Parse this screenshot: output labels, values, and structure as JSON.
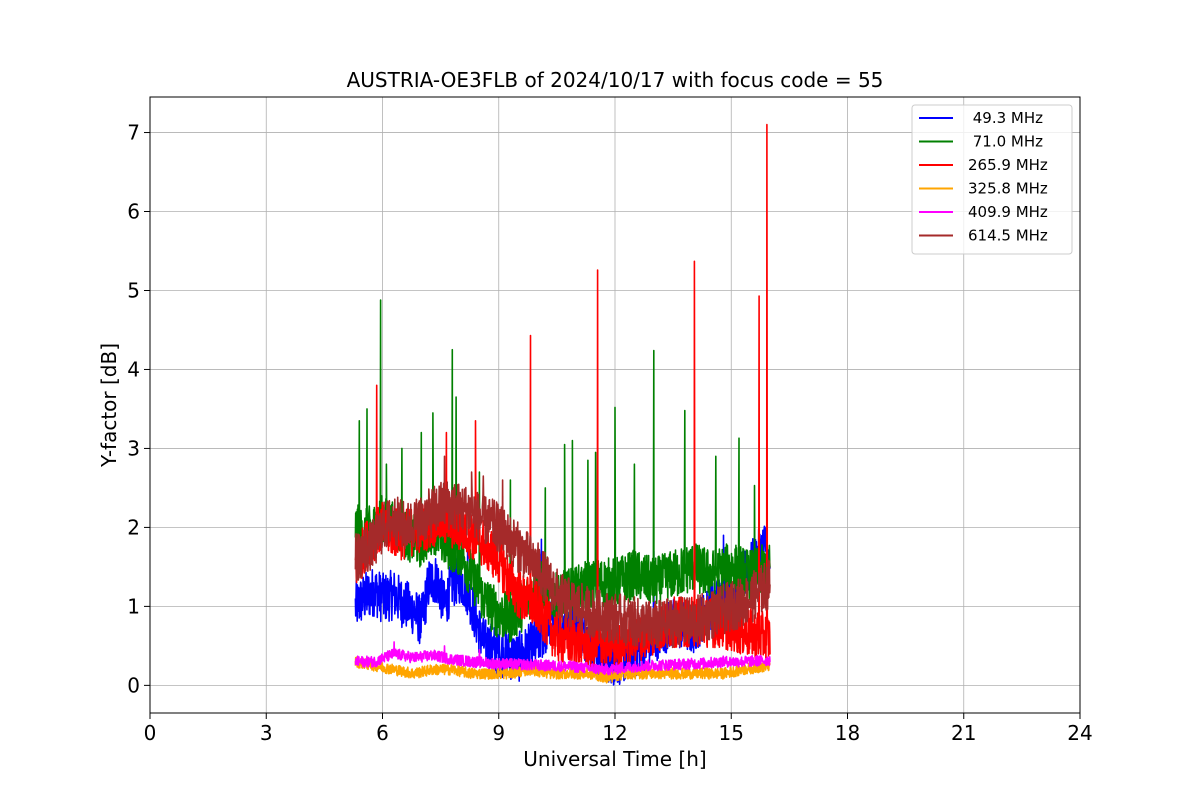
{
  "chart_data": {
    "type": "line",
    "title": "AUSTRIA-OE3FLB of 2024/10/17 with focus code = 55",
    "xlabel": "Universal Time [h]",
    "ylabel": "Y-factor [dB]",
    "xlim": [
      0,
      24
    ],
    "ylim": [
      -0.35,
      7.45
    ],
    "xticks": [
      0,
      3,
      6,
      9,
      12,
      15,
      18,
      21,
      24
    ],
    "yticks": [
      0,
      1,
      2,
      3,
      4,
      5,
      6,
      7
    ],
    "grid": true,
    "legend_position": "top-right",
    "series": [
      {
        "name": " 49.3 MHz",
        "color": "#0000ff",
        "points": [
          [
            5.3,
            1.0
          ],
          [
            5.5,
            1.1
          ],
          [
            5.8,
            1.2
          ],
          [
            6.0,
            1.1
          ],
          [
            6.3,
            1.15
          ],
          [
            6.5,
            1.05
          ],
          [
            6.8,
            0.95
          ],
          [
            7.0,
            0.8
          ],
          [
            7.2,
            1.3
          ],
          [
            7.4,
            1.35
          ],
          [
            7.6,
            1.0
          ],
          [
            7.8,
            1.3
          ],
          [
            8.0,
            1.35
          ],
          [
            8.2,
            1.2
          ],
          [
            8.4,
            0.85
          ],
          [
            8.6,
            0.55
          ],
          [
            8.9,
            0.45
          ],
          [
            9.2,
            0.4
          ],
          [
            9.5,
            0.35
          ],
          [
            10.0,
            0.55
          ],
          [
            10.5,
            0.9
          ],
          [
            11.0,
            0.75
          ],
          [
            11.5,
            0.45
          ],
          [
            12.0,
            0.3
          ],
          [
            12.5,
            0.4
          ],
          [
            13.0,
            0.6
          ],
          [
            13.5,
            0.8
          ],
          [
            14.0,
            0.7
          ],
          [
            14.5,
            1.0
          ],
          [
            15.0,
            1.2
          ],
          [
            15.5,
            1.5
          ],
          [
            15.9,
            1.8
          ],
          [
            16.0,
            1.3
          ]
        ],
        "spikes": [
          [
            6.0,
            1.35
          ],
          [
            8.2,
            1.8
          ],
          [
            10.1,
            1.85
          ],
          [
            13.0,
            1.7
          ],
          [
            14.8,
            1.9
          ],
          [
            15.9,
            2.0
          ]
        ]
      },
      {
        "name": " 71.0 MHz",
        "color": "#008000",
        "points": [
          [
            5.3,
            2.0
          ],
          [
            5.5,
            1.9
          ],
          [
            5.8,
            2.0
          ],
          [
            6.0,
            2.1
          ],
          [
            6.3,
            2.0
          ],
          [
            6.6,
            1.9
          ],
          [
            7.0,
            1.8
          ],
          [
            7.3,
            2.0
          ],
          [
            7.6,
            1.8
          ],
          [
            8.0,
            1.7
          ],
          [
            8.3,
            1.4
          ],
          [
            8.6,
            1.1
          ],
          [
            9.0,
            0.9
          ],
          [
            9.3,
            0.85
          ],
          [
            9.6,
            1.0
          ],
          [
            10.0,
            1.3
          ],
          [
            10.5,
            1.1
          ],
          [
            11.0,
            1.2
          ],
          [
            11.5,
            1.3
          ],
          [
            12.0,
            1.3
          ],
          [
            12.5,
            1.4
          ],
          [
            13.0,
            1.3
          ],
          [
            13.5,
            1.4
          ],
          [
            14.0,
            1.5
          ],
          [
            14.5,
            1.4
          ],
          [
            15.0,
            1.5
          ],
          [
            15.5,
            1.4
          ],
          [
            16.0,
            1.5
          ]
        ],
        "spikes": [
          [
            5.4,
            3.35
          ],
          [
            5.6,
            3.5
          ],
          [
            5.95,
            4.88
          ],
          [
            6.1,
            2.8
          ],
          [
            6.5,
            3.0
          ],
          [
            7.0,
            3.2
          ],
          [
            7.3,
            3.45
          ],
          [
            7.8,
            4.25
          ],
          [
            7.9,
            3.65
          ],
          [
            8.5,
            2.7
          ],
          [
            9.3,
            2.6
          ],
          [
            10.2,
            2.5
          ],
          [
            10.7,
            3.05
          ],
          [
            10.9,
            3.1
          ],
          [
            11.3,
            2.85
          ],
          [
            11.5,
            2.95
          ],
          [
            12.0,
            3.52
          ],
          [
            12.5,
            2.8
          ],
          [
            13.0,
            4.24
          ],
          [
            13.8,
            3.48
          ],
          [
            14.6,
            2.9
          ],
          [
            15.2,
            3.13
          ],
          [
            15.6,
            2.53
          ]
        ]
      },
      {
        "name": "265.9 MHz",
        "color": "#ff0000",
        "points": [
          [
            5.3,
            1.5
          ],
          [
            5.6,
            1.8
          ],
          [
            6.0,
            2.0
          ],
          [
            6.5,
            1.9
          ],
          [
            7.0,
            2.0
          ],
          [
            7.5,
            2.1
          ],
          [
            8.0,
            2.0
          ],
          [
            8.5,
            1.85
          ],
          [
            9.0,
            1.6
          ],
          [
            9.3,
            1.3
          ],
          [
            9.6,
            1.1
          ],
          [
            10.0,
            1.0
          ],
          [
            10.5,
            0.6
          ],
          [
            11.0,
            0.55
          ],
          [
            11.5,
            0.5
          ],
          [
            12.0,
            0.55
          ],
          [
            12.5,
            0.6
          ],
          [
            13.0,
            0.7
          ],
          [
            13.5,
            0.8
          ],
          [
            14.0,
            0.8
          ],
          [
            14.5,
            0.8
          ],
          [
            15.0,
            0.75
          ],
          [
            15.5,
            0.65
          ],
          [
            16.0,
            0.6
          ]
        ],
        "spikes": [
          [
            5.85,
            3.8
          ],
          [
            7.65,
            3.2
          ],
          [
            8.4,
            3.35
          ],
          [
            9.82,
            4.43
          ],
          [
            11.55,
            5.26
          ],
          [
            14.05,
            5.37
          ],
          [
            15.72,
            4.93
          ],
          [
            15.92,
            7.1
          ]
        ]
      },
      {
        "name": "325.8 MHz",
        "color": "#ffa500",
        "points": [
          [
            5.3,
            0.3
          ],
          [
            5.8,
            0.25
          ],
          [
            6.3,
            0.2
          ],
          [
            6.8,
            0.15
          ],
          [
            7.3,
            0.2
          ],
          [
            7.8,
            0.2
          ],
          [
            8.3,
            0.15
          ],
          [
            8.8,
            0.15
          ],
          [
            9.3,
            0.15
          ],
          [
            9.8,
            0.2
          ],
          [
            10.3,
            0.15
          ],
          [
            10.8,
            0.15
          ],
          [
            11.3,
            0.15
          ],
          [
            11.8,
            0.1
          ],
          [
            12.3,
            0.15
          ],
          [
            12.8,
            0.15
          ],
          [
            13.3,
            0.15
          ],
          [
            13.8,
            0.15
          ],
          [
            14.3,
            0.15
          ],
          [
            14.8,
            0.15
          ],
          [
            15.3,
            0.2
          ],
          [
            16.0,
            0.25
          ]
        ],
        "spikes": []
      },
      {
        "name": "409.9 MHz",
        "color": "#ff00ff",
        "points": [
          [
            5.3,
            0.3
          ],
          [
            5.8,
            0.3
          ],
          [
            6.3,
            0.4
          ],
          [
            6.8,
            0.35
          ],
          [
            7.3,
            0.38
          ],
          [
            7.8,
            0.33
          ],
          [
            8.3,
            0.3
          ],
          [
            8.8,
            0.28
          ],
          [
            9.3,
            0.27
          ],
          [
            9.8,
            0.26
          ],
          [
            10.3,
            0.25
          ],
          [
            10.8,
            0.24
          ],
          [
            11.3,
            0.22
          ],
          [
            11.8,
            0.2
          ],
          [
            12.3,
            0.23
          ],
          [
            12.8,
            0.25
          ],
          [
            13.3,
            0.26
          ],
          [
            13.8,
            0.27
          ],
          [
            14.3,
            0.28
          ],
          [
            14.8,
            0.3
          ],
          [
            15.3,
            0.3
          ],
          [
            16.0,
            0.32
          ]
        ],
        "spikes": [
          [
            6.3,
            0.55
          ],
          [
            7.6,
            0.5
          ],
          [
            8.5,
            0.45
          ]
        ]
      },
      {
        "name": "614.5 MHz",
        "color": "#a52a2a",
        "points": [
          [
            5.3,
            1.6
          ],
          [
            5.5,
            1.7
          ],
          [
            5.8,
            1.8
          ],
          [
            6.0,
            2.0
          ],
          [
            6.3,
            2.1
          ],
          [
            6.6,
            2.0
          ],
          [
            7.0,
            2.1
          ],
          [
            7.3,
            2.2
          ],
          [
            7.6,
            2.3
          ],
          [
            8.0,
            2.25
          ],
          [
            8.3,
            2.2
          ],
          [
            8.6,
            2.1
          ],
          [
            9.0,
            2.0
          ],
          [
            9.3,
            1.85
          ],
          [
            9.6,
            1.7
          ],
          [
            10.0,
            1.5
          ],
          [
            10.3,
            1.3
          ],
          [
            10.6,
            1.1
          ],
          [
            11.0,
            1.0
          ],
          [
            11.5,
            0.9
          ],
          [
            12.0,
            0.85
          ],
          [
            12.5,
            0.8
          ],
          [
            13.0,
            0.75
          ],
          [
            13.5,
            0.8
          ],
          [
            14.0,
            0.8
          ],
          [
            14.5,
            0.9
          ],
          [
            15.0,
            1.0
          ],
          [
            15.5,
            1.1
          ],
          [
            16.0,
            1.3
          ]
        ],
        "spikes": [
          [
            7.6,
            2.9
          ],
          [
            8.3,
            2.7
          ],
          [
            8.6,
            2.65
          ],
          [
            9.1,
            2.6
          ]
        ]
      }
    ]
  }
}
